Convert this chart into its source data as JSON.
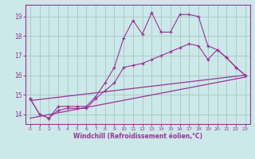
{
  "background_color": "#cce8e8",
  "grid_color": "#aacccc",
  "line_color": "#993399",
  "title": "Windchill (Refroidissement éolien,°C)",
  "xlim": [
    -0.5,
    23.5
  ],
  "ylim": [
    13.5,
    19.6
  ],
  "yticks": [
    14,
    15,
    16,
    17,
    18,
    19
  ],
  "xticks": [
    0,
    1,
    2,
    3,
    4,
    5,
    6,
    7,
    8,
    9,
    10,
    11,
    12,
    13,
    14,
    15,
    16,
    17,
    18,
    19,
    20,
    21,
    22,
    23
  ],
  "series": [
    {
      "x": [
        0,
        1,
        2,
        3,
        4,
        5,
        6,
        7,
        8,
        9,
        10,
        11,
        12,
        13,
        14,
        15,
        16,
        17,
        18,
        19,
        20,
        21,
        22,
        23
      ],
      "y": [
        14.8,
        14.0,
        13.8,
        14.4,
        14.4,
        14.4,
        14.4,
        14.9,
        15.6,
        16.4,
        17.9,
        18.8,
        18.1,
        19.2,
        18.2,
        18.2,
        19.1,
        19.1,
        19.0,
        17.5,
        17.3,
        16.9,
        16.4,
        16.0
      ],
      "marker": true
    },
    {
      "x": [
        0,
        1,
        2,
        3,
        4,
        5,
        6,
        7,
        8,
        9,
        10,
        11,
        12,
        13,
        14,
        15,
        16,
        17,
        18,
        19,
        20,
        21,
        22,
        23
      ],
      "y": [
        14.8,
        14.0,
        13.8,
        14.2,
        14.3,
        14.3,
        14.3,
        14.8,
        15.2,
        15.6,
        16.4,
        16.5,
        16.6,
        16.8,
        17.0,
        17.2,
        17.4,
        17.6,
        17.5,
        16.8,
        17.3,
        16.9,
        16.4,
        16.0
      ],
      "marker": true
    },
    {
      "x": [
        0,
        23
      ],
      "y": [
        14.7,
        16.0
      ],
      "marker": false
    },
    {
      "x": [
        0,
        23
      ],
      "y": [
        13.8,
        15.9
      ],
      "marker": false
    }
  ]
}
